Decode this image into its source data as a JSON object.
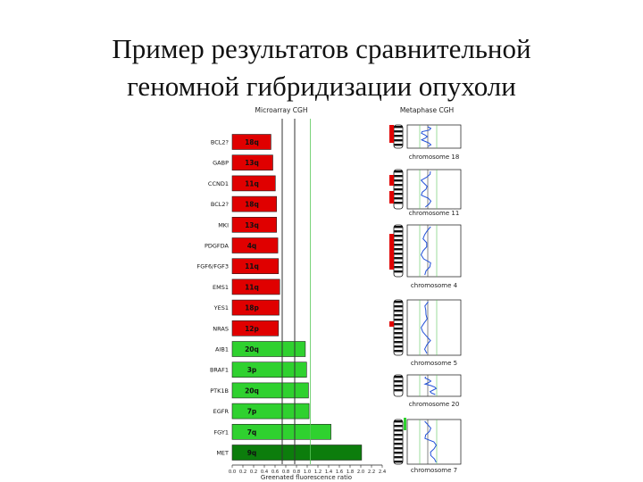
{
  "slide": {
    "title_line1": "Пример результатов сравнительной",
    "title_line2": "геномной гибридизации опухоли"
  },
  "chart_data": {
    "type": "bar",
    "orientation": "horizontal",
    "title": "Microarray CGH",
    "xlabel": "Greenated fluorescence ratio",
    "xlim": [
      0.0,
      2.4
    ],
    "x_ticks": [
      "0.0",
      "0.2",
      "0.2",
      "0.4",
      "0.6",
      "0.8",
      "0.8",
      "1.0",
      "1.2",
      "1.4",
      "1.6",
      "1.8",
      "2.0",
      "2.2",
      "2.4"
    ],
    "categories": [
      "BCL2?",
      "GABP",
      "CCND1",
      "BCL2?",
      "MKI",
      "PDGFDA",
      "FGF6/FGF3",
      "EMS1",
      "YES1",
      "NRAS",
      "AIB1",
      "BRAF1",
      "PTK1B",
      "EGFR",
      "FGY1",
      "MET"
    ],
    "values": [
      0.62,
      0.65,
      0.69,
      0.71,
      0.71,
      0.73,
      0.74,
      0.76,
      0.75,
      0.74,
      1.17,
      1.19,
      1.22,
      1.23,
      1.58,
      2.07
    ],
    "labels": [
      "18q",
      "13q",
      "11q",
      "18q",
      "13q",
      "4q",
      "11q",
      "11q",
      "18p",
      "12p",
      "20q",
      "3p",
      "20q",
      "7p",
      "7q",
      "9q"
    ],
    "colors": [
      "#e00000",
      "#e00000",
      "#e00000",
      "#e00000",
      "#e00000",
      "#e00000",
      "#e00000",
      "#e00000",
      "#e00000",
      "#e00000",
      "#2fd12f",
      "#2fd12f",
      "#2fd12f",
      "#2fd12f",
      "#2fd12f",
      "#0c7d0c"
    ],
    "reference_lines": [
      0.8,
      1.0,
      1.25
    ],
    "metaphase_title": "Metaphase CGH",
    "metaphase_panels": [
      "chromosome 18",
      "chromosome 11",
      "chromosome 4",
      "chromosome 5",
      "chromosome 20",
      "chromosome 7"
    ]
  }
}
